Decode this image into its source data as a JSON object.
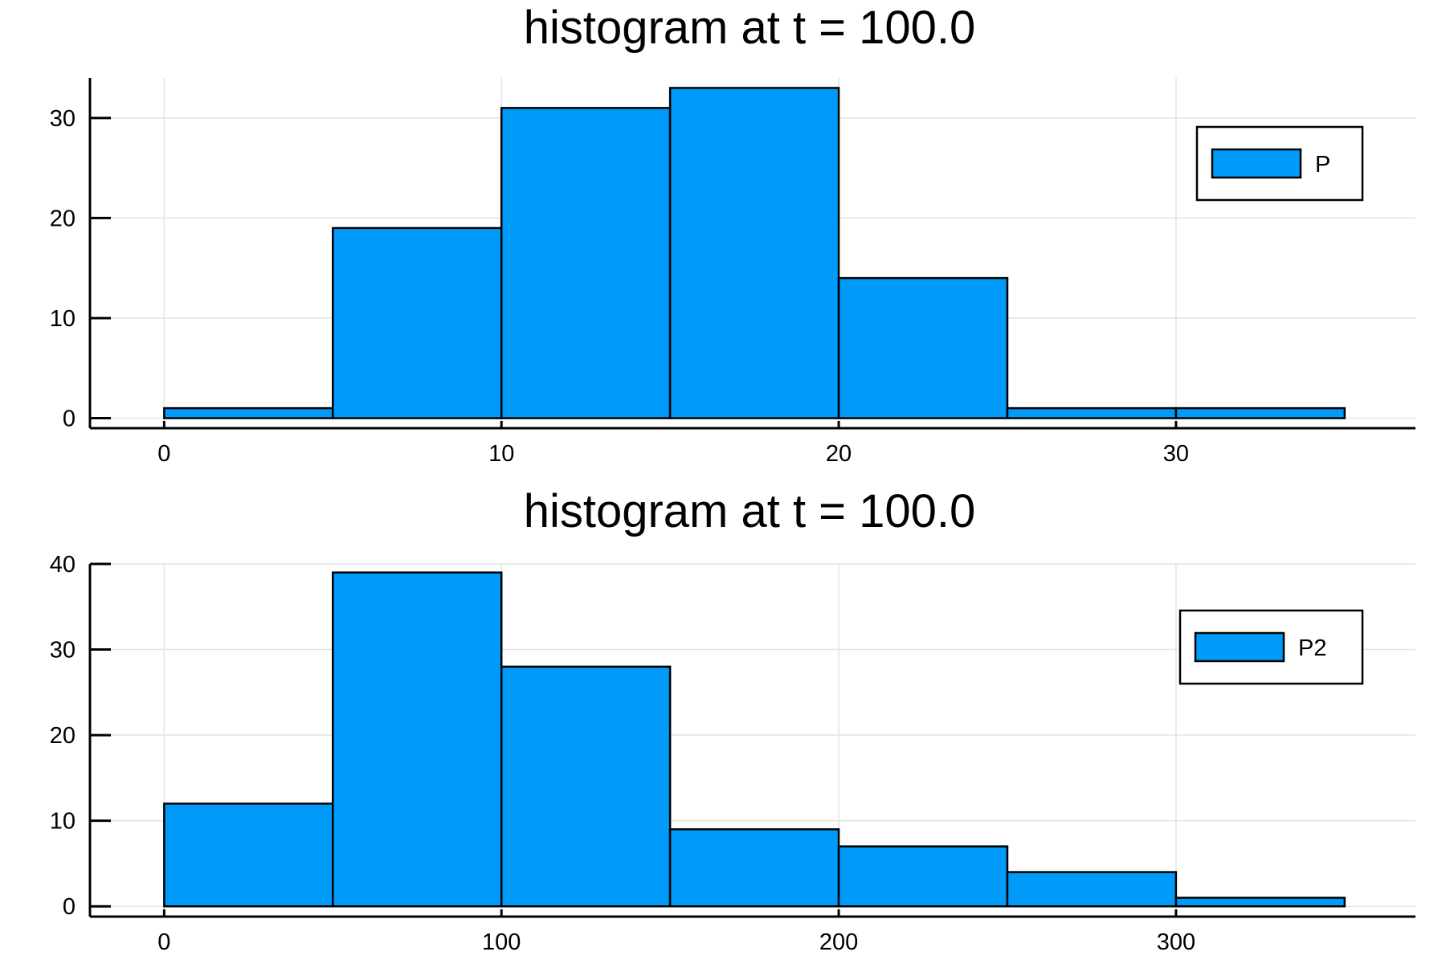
{
  "chart_data": [
    {
      "type": "bar",
      "title": "histogram at t = 100.0",
      "xlabel": "",
      "ylabel": "",
      "bin_edges": [
        0,
        5,
        10,
        15,
        20,
        25,
        30,
        35
      ],
      "series": [
        {
          "name": "P",
          "values": [
            1,
            19,
            31,
            33,
            14,
            1,
            1
          ],
          "color": "#009af9"
        }
      ],
      "xlim": [
        -2.2,
        37.1
      ],
      "ylim": [
        -1,
        34
      ],
      "xticks": [
        0,
        10,
        20,
        30
      ],
      "yticks": [
        0,
        10,
        20,
        30
      ],
      "grid": true,
      "legend_position": "top-right"
    },
    {
      "type": "bar",
      "title": "histogram at t = 100.0",
      "xlabel": "",
      "ylabel": "",
      "bin_edges": [
        0,
        50,
        100,
        150,
        200,
        250,
        300,
        350
      ],
      "series": [
        {
          "name": "P2",
          "values": [
            12,
            39,
            28,
            9,
            7,
            4,
            1
          ],
          "color": "#009af9"
        }
      ],
      "xlim": [
        -22,
        371
      ],
      "ylim": [
        -1.2,
        40
      ],
      "xticks": [
        0,
        100,
        200,
        300
      ],
      "yticks": [
        0,
        10,
        20,
        30,
        40
      ],
      "grid": true,
      "legend_position": "top-right"
    }
  ]
}
